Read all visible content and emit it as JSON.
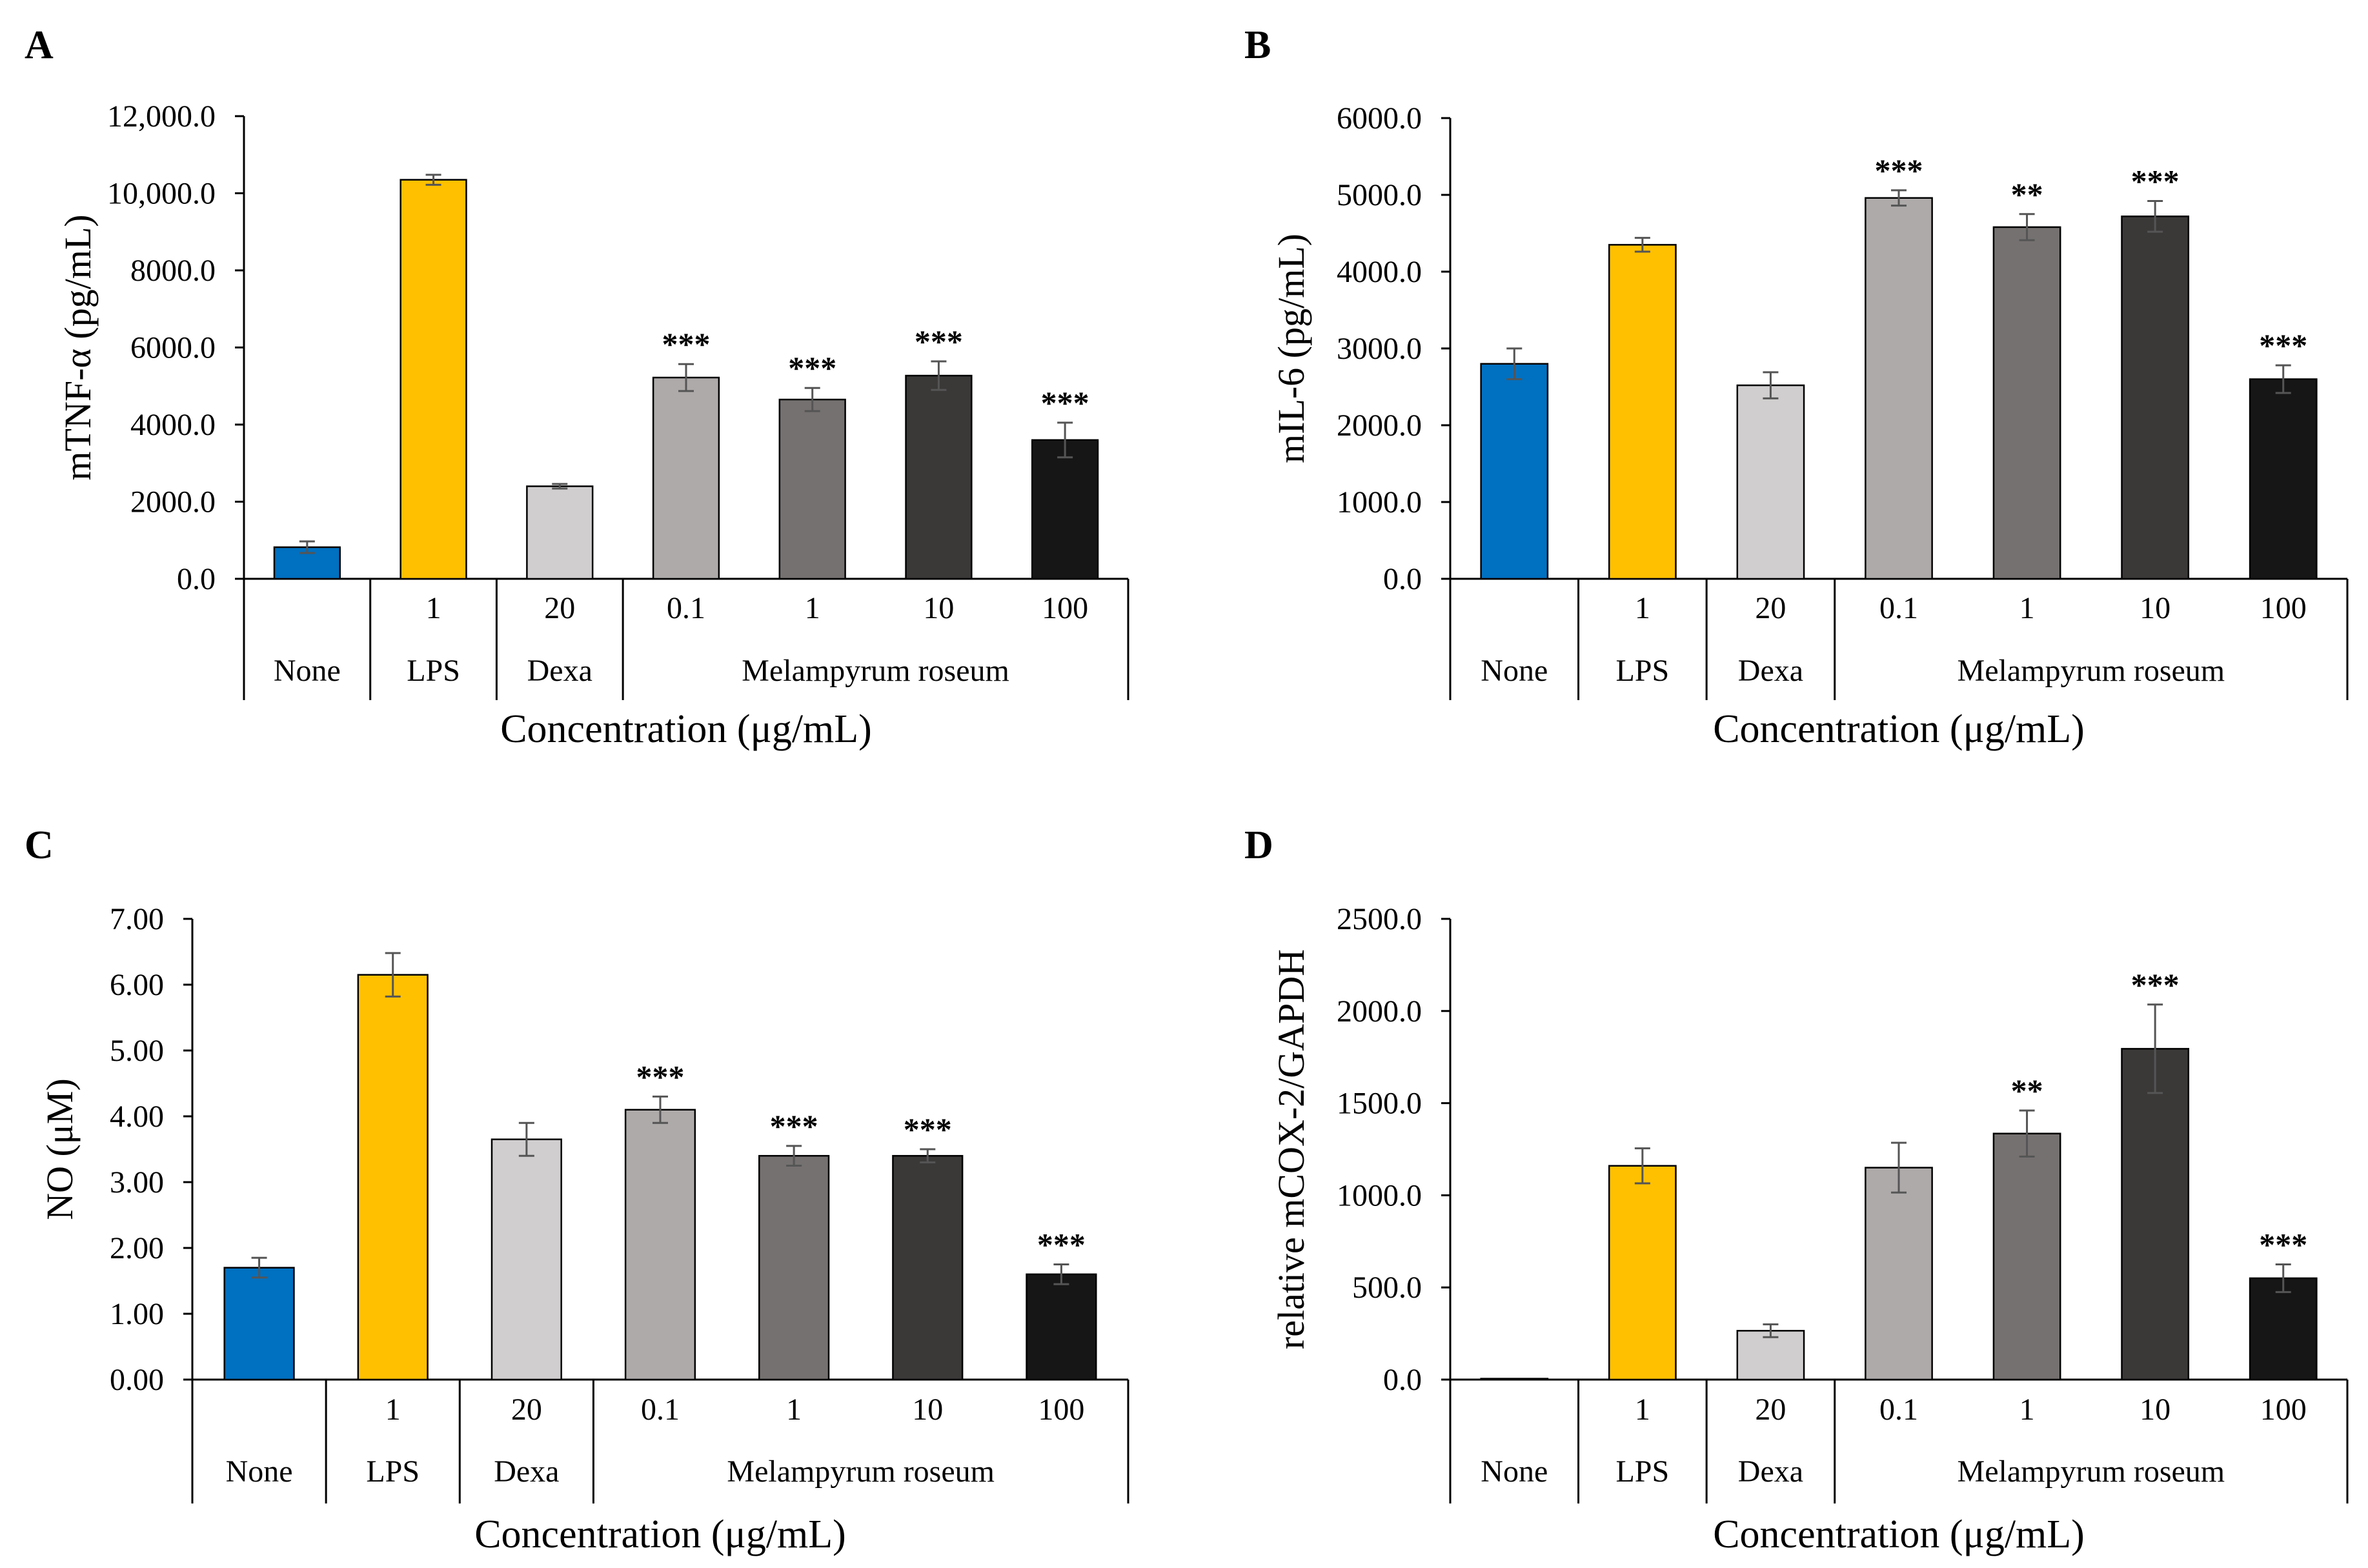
{
  "figure": {
    "panels": [
      "A",
      "B",
      "C",
      "D"
    ]
  },
  "colors": {
    "none": "#0070C0",
    "lps": "#FFC000",
    "dexa": "#D0CECE",
    "mr_0_1": "#AEAAAA",
    "mr_1": "#767171",
    "mr_10": "#3B3838",
    "mr_100": "#161616"
  },
  "chart_data": [
    {
      "type": "bar",
      "panel": "A",
      "ylabel": "mTNF-α (pg/mL)",
      "xlabel": "Concentration (μg/mL)",
      "ylim": [
        0,
        12000
      ],
      "yticks": [
        "0.0",
        "2000.0",
        "4000.0",
        "6000.0",
        "8000.0",
        "10,000.0",
        "12,000.0"
      ],
      "ytick_values": [
        0,
        2000,
        4000,
        6000,
        8000,
        10000,
        12000
      ],
      "categories": [
        "",
        "1",
        "20",
        "0.1",
        "1",
        "10",
        "100"
      ],
      "groups": [
        {
          "label": "None",
          "span": [
            0,
            0
          ]
        },
        {
          "label": "LPS",
          "span": [
            1,
            1
          ]
        },
        {
          "label": "Dexa",
          "span": [
            2,
            2
          ]
        },
        {
          "label": "Melampyrum roseum",
          "span": [
            3,
            6
          ]
        }
      ],
      "values": [
        820,
        10350,
        2400,
        5220,
        4650,
        5270,
        3600
      ],
      "errors": [
        150,
        130,
        60,
        350,
        300,
        370,
        450
      ],
      "significance": [
        "",
        "",
        "",
        "***",
        "***",
        "***",
        "***"
      ],
      "grid": false
    },
    {
      "type": "bar",
      "panel": "B",
      "ylabel": "mIL-6 (pg/mL)",
      "xlabel": "Concentration (μg/mL)",
      "ylim": [
        0,
        6000
      ],
      "yticks": [
        "0.0",
        "1000.0",
        "2000.0",
        "3000.0",
        "4000.0",
        "5000.0",
        "6000.0"
      ],
      "ytick_values": [
        0,
        1000,
        2000,
        3000,
        4000,
        5000,
        6000
      ],
      "categories": [
        "",
        "1",
        "20",
        "0.1",
        "1",
        "10",
        "100"
      ],
      "groups": [
        {
          "label": "None",
          "span": [
            0,
            0
          ]
        },
        {
          "label": "LPS",
          "span": [
            1,
            1
          ]
        },
        {
          "label": "Dexa",
          "span": [
            2,
            2
          ]
        },
        {
          "label": "Melampyrum roseum",
          "span": [
            3,
            6
          ]
        }
      ],
      "values": [
        2800,
        4350,
        2520,
        4960,
        4580,
        4720,
        2600
      ],
      "errors": [
        200,
        90,
        170,
        100,
        170,
        200,
        180
      ],
      "significance": [
        "",
        "",
        "",
        "***",
        "**",
        "***",
        "***"
      ],
      "grid": false
    },
    {
      "type": "bar",
      "panel": "C",
      "ylabel": "NO (μM)",
      "xlabel": "Concentration (μg/mL)",
      "ylim": [
        0,
        7
      ],
      "yticks": [
        "0.00",
        "1.00",
        "2.00",
        "3.00",
        "4.00",
        "5.00",
        "6.00",
        "7.00"
      ],
      "ytick_values": [
        0,
        1,
        2,
        3,
        4,
        5,
        6,
        7
      ],
      "categories": [
        "",
        "1",
        "20",
        "0.1",
        "1",
        "10",
        "100"
      ],
      "groups": [
        {
          "label": "None",
          "span": [
            0,
            0
          ]
        },
        {
          "label": "LPS",
          "span": [
            1,
            1
          ]
        },
        {
          "label": "Dexa",
          "span": [
            2,
            2
          ]
        },
        {
          "label": "Melampyrum roseum",
          "span": [
            3,
            6
          ]
        }
      ],
      "values": [
        1.7,
        6.15,
        3.65,
        4.1,
        3.4,
        3.4,
        1.6
      ],
      "errors": [
        0.15,
        0.33,
        0.25,
        0.2,
        0.15,
        0.1,
        0.15
      ],
      "significance": [
        "",
        "",
        "",
        "***",
        "***",
        "***",
        "***"
      ],
      "grid": false
    },
    {
      "type": "bar",
      "panel": "D",
      "ylabel": "relative mCOX-2/GAPDH",
      "xlabel": "Concentration (μg/mL)",
      "ylim": [
        0,
        2500
      ],
      "yticks": [
        "0.0",
        "500.0",
        "1000.0",
        "1500.0",
        "2000.0",
        "2500.0"
      ],
      "ytick_values": [
        0,
        500,
        1000,
        1500,
        2000,
        2500
      ],
      "categories": [
        "",
        "1",
        "20",
        "0.1",
        "1",
        "10",
        "100"
      ],
      "groups": [
        {
          "label": "None",
          "span": [
            0,
            0
          ]
        },
        {
          "label": "LPS",
          "span": [
            1,
            1
          ]
        },
        {
          "label": "Dexa",
          "span": [
            2,
            2
          ]
        },
        {
          "label": "Melampyrum roseum",
          "span": [
            3,
            6
          ]
        }
      ],
      "values": [
        5,
        1160,
        265,
        1150,
        1335,
        1795,
        550
      ],
      "errors": [
        0,
        95,
        35,
        135,
        125,
        240,
        75
      ],
      "significance": [
        "",
        "",
        "",
        "",
        "**",
        "***",
        "***"
      ],
      "grid": false
    }
  ]
}
